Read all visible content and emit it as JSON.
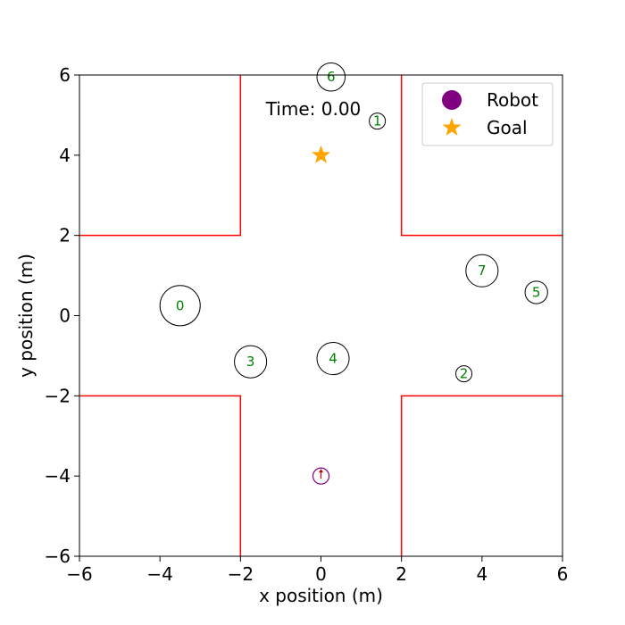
{
  "chart_data": {
    "type": "scatter",
    "title": "",
    "xlabel": "x position (m)",
    "ylabel": "y position (m)",
    "xlim": [
      -6,
      6
    ],
    "ylim": [
      -6,
      6
    ],
    "xticks": [
      -6,
      -4,
      -2,
      0,
      2,
      4,
      6
    ],
    "yticks": [
      -6,
      -4,
      -2,
      0,
      2,
      4,
      6
    ],
    "grid": false,
    "legend_position": "top-right",
    "time_label": "Time: 0.00",
    "legend": [
      {
        "name": "Robot",
        "marker": "circle",
        "color": "#800080"
      },
      {
        "name": "Goal",
        "marker": "star",
        "color": "#FFA500"
      }
    ],
    "robot": {
      "x": 0.0,
      "y": -4.0,
      "radius": 0.2,
      "color": "#800080",
      "heading": "up"
    },
    "goal": {
      "x": 0.0,
      "y": 4.0,
      "color": "#FFA500"
    },
    "humans": [
      {
        "id": "0",
        "x": -3.5,
        "y": 0.25,
        "radius": 0.5
      },
      {
        "id": "1",
        "x": 1.4,
        "y": 4.85,
        "radius": 0.2
      },
      {
        "id": "2",
        "x": 3.55,
        "y": -1.45,
        "radius": 0.2
      },
      {
        "id": "3",
        "x": -1.75,
        "y": -1.15,
        "radius": 0.4
      },
      {
        "id": "4",
        "x": 0.3,
        "y": -1.07,
        "radius": 0.4
      },
      {
        "id": "5",
        "x": 5.35,
        "y": 0.58,
        "radius": 0.28
      },
      {
        "id": "6",
        "x": 0.25,
        "y": 5.95,
        "radius": 0.35
      },
      {
        "id": "7",
        "x": 4.0,
        "y": 1.12,
        "radius": 0.4
      }
    ],
    "walls": [
      {
        "name": "top-left",
        "points": [
          [
            -6,
            2
          ],
          [
            -2,
            2
          ],
          [
            -2,
            6
          ]
        ]
      },
      {
        "name": "top-right",
        "points": [
          [
            2,
            6
          ],
          [
            2,
            2
          ],
          [
            6,
            2
          ]
        ]
      },
      {
        "name": "bottom-left",
        "points": [
          [
            -6,
            -2
          ],
          [
            -2,
            -2
          ],
          [
            -2,
            -6
          ]
        ]
      },
      {
        "name": "bottom-right",
        "points": [
          [
            2,
            -6
          ],
          [
            2,
            -2
          ],
          [
            6,
            -2
          ]
        ]
      }
    ],
    "wall_color": "#FF0000",
    "human_label_color": "#008000"
  }
}
